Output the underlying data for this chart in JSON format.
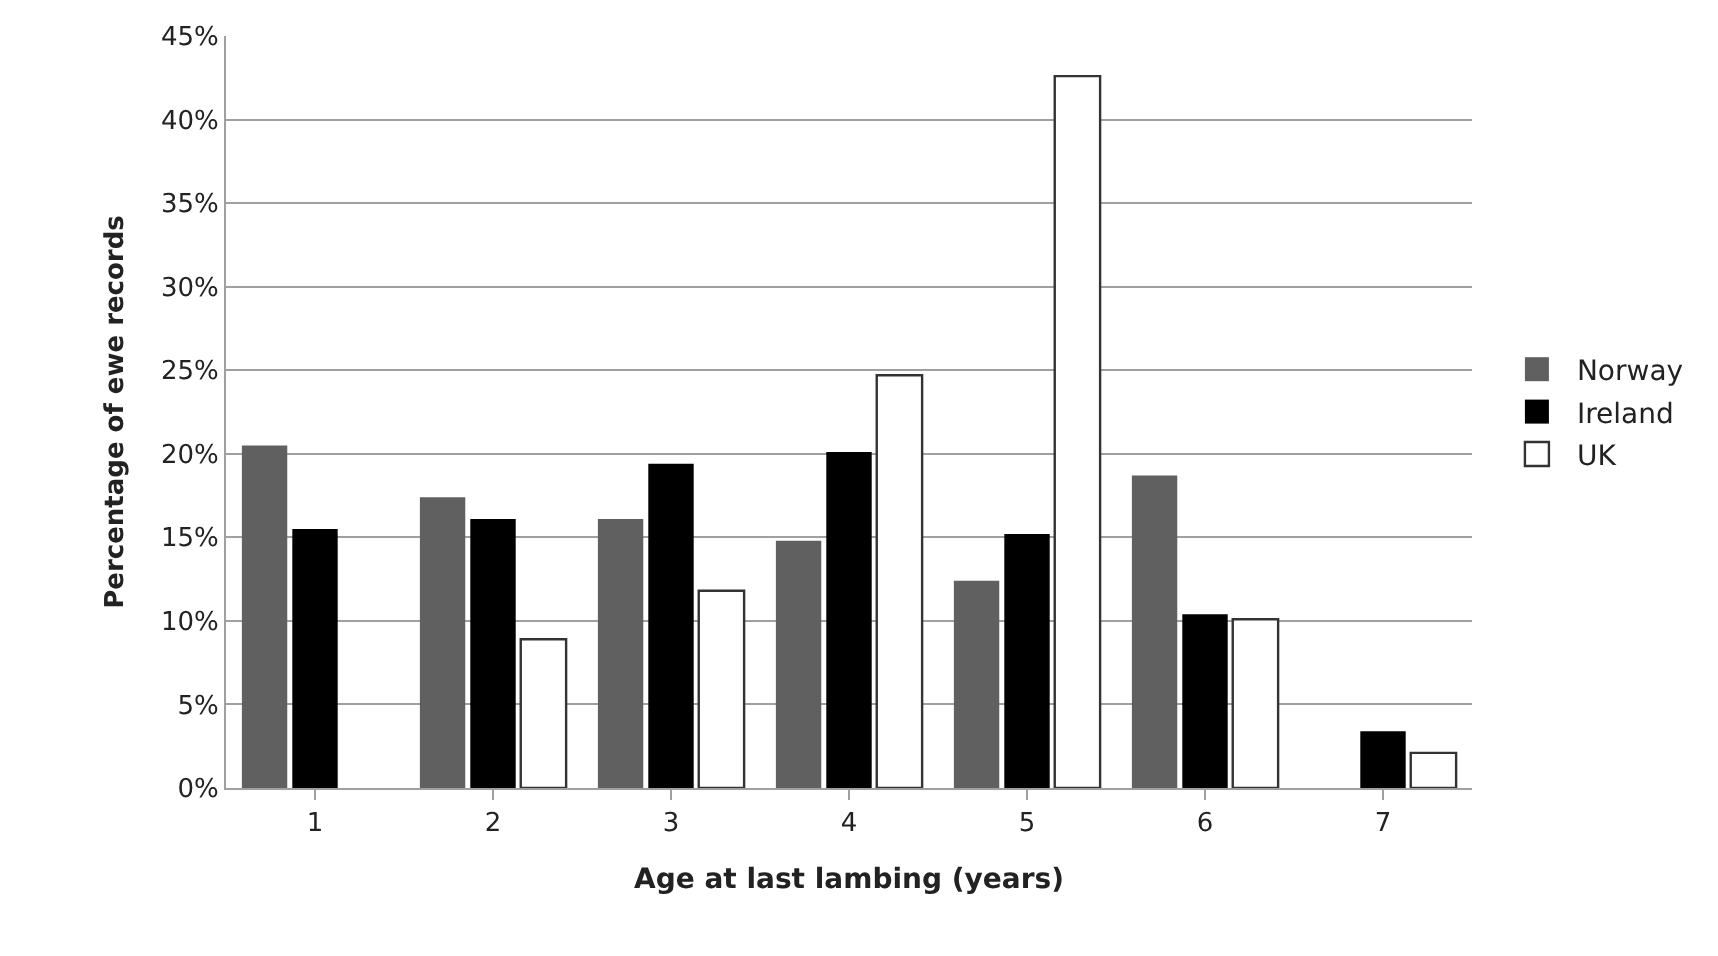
{
  "chart_data": {
    "type": "bar",
    "xlabel": "Age at last lambing (years)",
    "ylabel": "Percentage of ewe records",
    "categories": [
      "1",
      "2",
      "3",
      "4",
      "5",
      "6",
      "7"
    ],
    "series": [
      {
        "name": "Norway",
        "color": "#606060",
        "values": [
          20.5,
          17.4,
          16.1,
          14.8,
          12.4,
          18.7,
          null
        ]
      },
      {
        "name": "Ireland",
        "color": "#000000",
        "values": [
          15.5,
          16.1,
          19.4,
          20.1,
          15.2,
          10.4,
          3.4
        ]
      },
      {
        "name": "UK",
        "color": "#ffffff",
        "values": [
          null,
          8.9,
          11.8,
          24.7,
          42.6,
          10.1,
          2.1
        ]
      }
    ],
    "ylim": [
      0,
      45
    ],
    "yticks": [
      {
        "value": 0,
        "label": "0%"
      },
      {
        "value": 5,
        "label": "5%"
      },
      {
        "value": 10,
        "label": "10%"
      },
      {
        "value": 15,
        "label": "15%"
      },
      {
        "value": 20,
        "label": "20%"
      },
      {
        "value": 25,
        "label": "25%"
      },
      {
        "value": 30,
        "label": "30%"
      },
      {
        "value": 35,
        "label": "35%"
      },
      {
        "value": 40,
        "label": "40%"
      },
      {
        "value": 45,
        "label": "45%"
      }
    ],
    "grid": "y",
    "legend": "right"
  }
}
